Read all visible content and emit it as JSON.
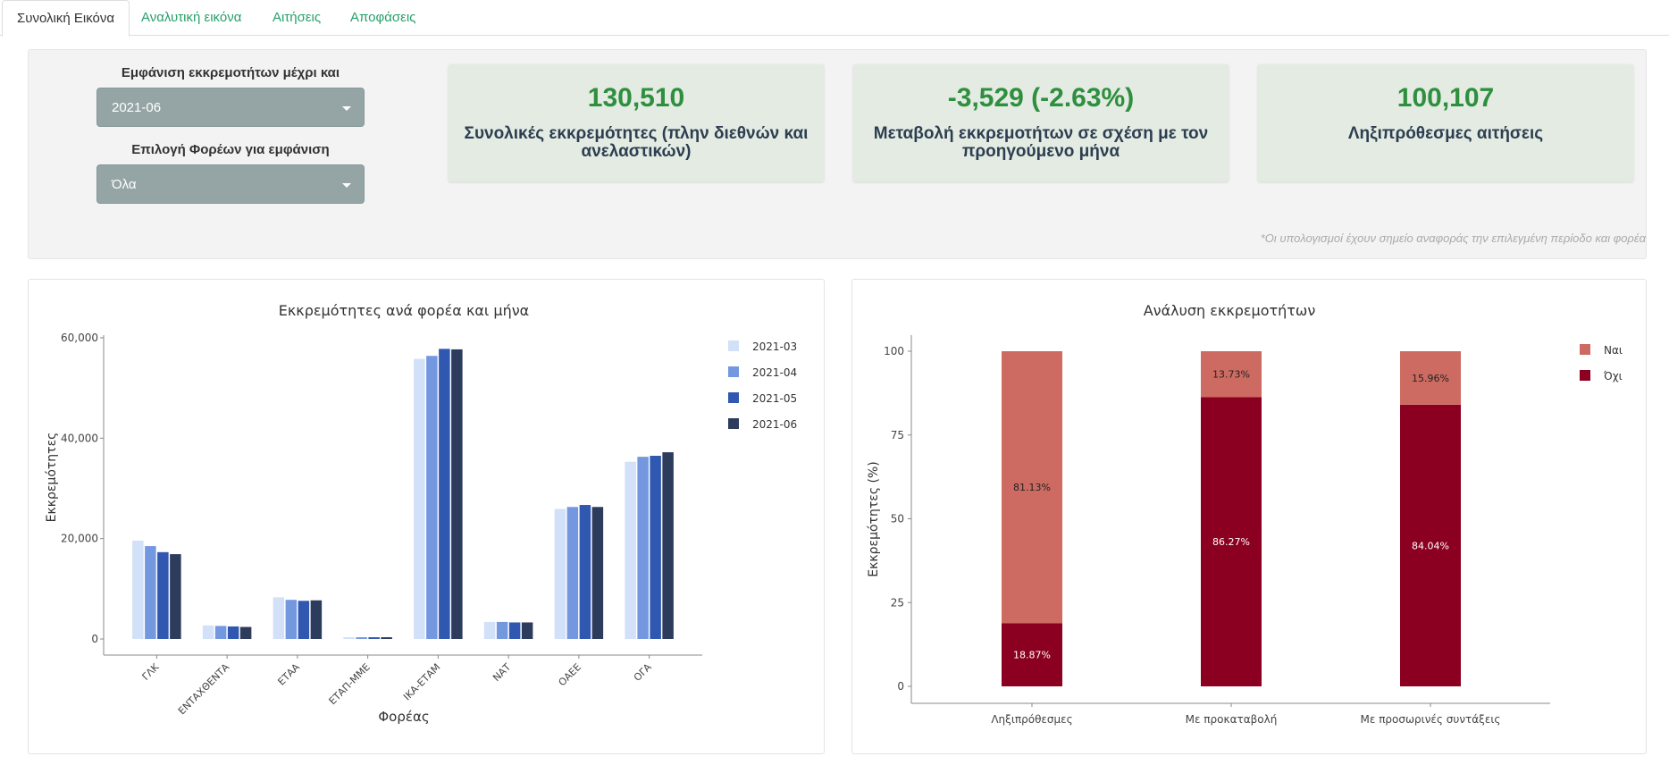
{
  "tabs": [
    "Συνολική Εικόνα",
    "Αναλυτική εικόνα",
    "Αιτήσεις",
    "Αποφάσεις"
  ],
  "controls": {
    "period_label": "Εμφάνιση εκκρεμοτήτων μέχρι και",
    "period_value": "2021-06",
    "agency_label": "Επιλογή Φορέων για εμφάνιση",
    "agency_value": "Όλα"
  },
  "kpis": [
    {
      "value": "130,510",
      "label": "Συνολικές εκκρεμότητες (πλην διεθνών και ανελαστικών)"
    },
    {
      "value": "-3,529 (-2.63%)",
      "label": "Μεταβολή εκκρεμοτήτων σε σχέση με τον προηγούμενο μήνα"
    },
    {
      "value": "100,107",
      "label": "Ληξιπρόθεσμες αιτήσεις"
    }
  ],
  "footnote": "*Οι υπολογισμοί έχουν σημείο αναφοράς την επιλεγμένη περίοδο και φορέα",
  "colors": {
    "tab_link": "#27a06a",
    "kpi_value": "#2e8f3e",
    "kpi_bg": "#e3ebe3",
    "select_bg": "#95a5a6"
  },
  "chart_data": [
    {
      "type": "bar",
      "title": "Εκκρεμότητες ανά φορέα και μήνα",
      "xlabel": "Φορέας",
      "ylabel": "Εκκρεμότητες",
      "ylim": [
        0,
        61000
      ],
      "yticks": [
        "0",
        "20,000",
        "40,000",
        "60,000"
      ],
      "ytick_values": [
        0,
        20000,
        40000,
        60000
      ],
      "categories": [
        "ΓΛΚ",
        "ΕΝΤΑΧΘΕΝΤΑ",
        "ΕΤΑΑ",
        "ΕΤΑΠ-ΜΜΕ",
        "ΙΚΑ-ΕΤΑΜ",
        "ΝΑΤ",
        "ΟΑΕΕ",
        "ΟΓΑ"
      ],
      "legend_position": "right",
      "grid": false,
      "series": [
        {
          "name": "2021-03",
          "color": "#d2e0f8",
          "values": [
            19600,
            2700,
            8300,
            350,
            55800,
            3400,
            25900,
            35300
          ]
        },
        {
          "name": "2021-04",
          "color": "#7498e0",
          "values": [
            18500,
            2600,
            7800,
            350,
            56400,
            3400,
            26300,
            36300
          ]
        },
        {
          "name": "2021-05",
          "color": "#3058b0",
          "values": [
            17300,
            2500,
            7600,
            350,
            57800,
            3300,
            26700,
            36500
          ]
        },
        {
          "name": "2021-06",
          "color": "#2d3c5c",
          "values": [
            16900,
            2400,
            7700,
            350,
            57700,
            3300,
            26300,
            37200
          ]
        }
      ]
    },
    {
      "type": "bar",
      "stacked": true,
      "title": "Ανάλυση εκκρεμοτήτων",
      "xlabel": "",
      "ylabel": "Εκκρεμότητες (%)",
      "ylim": [
        0,
        105
      ],
      "yticks": [
        "0",
        "25",
        "50",
        "75",
        "100"
      ],
      "ytick_values": [
        0,
        25,
        50,
        75,
        100
      ],
      "categories": [
        "Ληξιπρόθεσμες",
        "Με προκαταβολή",
        "Με προσωρινές συντάξεις"
      ],
      "legend_position": "right",
      "grid": false,
      "series": [
        {
          "name": "Όχι",
          "color": "#8b0020",
          "values": [
            18.87,
            86.27,
            84.04
          ],
          "labels": [
            "18.87%",
            "86.27%",
            "84.04%"
          ]
        },
        {
          "name": "Ναι",
          "color": "#cd6b62",
          "values": [
            81.13,
            13.73,
            15.96
          ],
          "labels": [
            "81.13%",
            "13.73%",
            "15.96%"
          ]
        }
      ],
      "legend_order": [
        "Ναι",
        "Όχι"
      ]
    }
  ]
}
